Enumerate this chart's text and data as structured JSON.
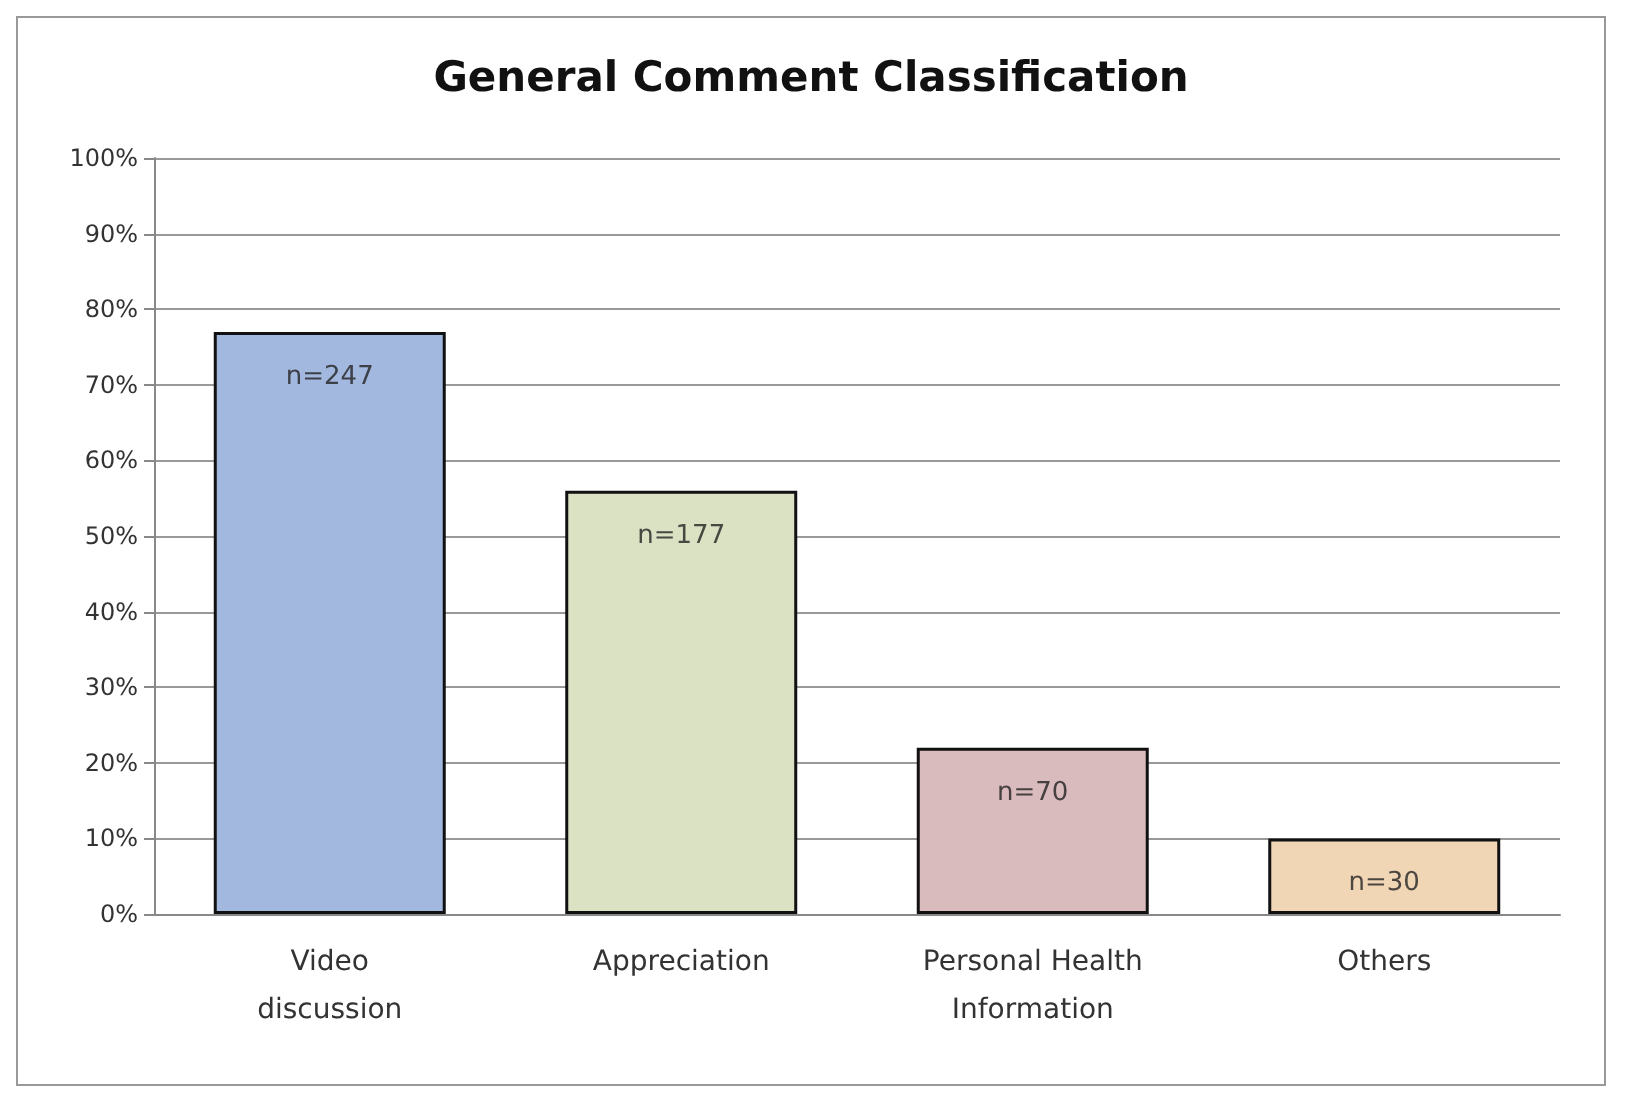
{
  "chart_data": {
    "type": "bar",
    "title": "General Comment Classification",
    "categories": [
      "Video\ndiscussion",
      "Appreciation",
      "Personal Health\nInformation",
      "Others"
    ],
    "values": [
      77,
      56,
      22,
      10
    ],
    "colors": [
      "#a3b8de",
      "#dbe2c4",
      "#d9babd",
      "#f1d6b6"
    ],
    "annotations": [
      {
        "text": "n=247",
        "x": "Video\ndiscussion",
        "y": 77
      },
      {
        "text": "n=177",
        "x": "Appreciation",
        "y": 56
      },
      {
        "text": "n=70",
        "x": "Personal Health\nInformation",
        "y": 22
      },
      {
        "text": "n=30",
        "x": "Others",
        "y": 10
      }
    ],
    "ylim": [
      0,
      100
    ],
    "yticks": [
      {
        "value": 0,
        "label": "0%"
      },
      {
        "value": 10,
        "label": "10%"
      },
      {
        "value": 20,
        "label": "20%"
      },
      {
        "value": 30,
        "label": "30%"
      },
      {
        "value": 40,
        "label": "40%"
      },
      {
        "value": 50,
        "label": "50%"
      },
      {
        "value": 60,
        "label": "60%"
      },
      {
        "value": 70,
        "label": "70%"
      },
      {
        "value": 80,
        "label": "80%"
      },
      {
        "value": 90,
        "label": "90%"
      },
      {
        "value": 100,
        "label": "100%"
      }
    ],
    "grid": "y"
  }
}
